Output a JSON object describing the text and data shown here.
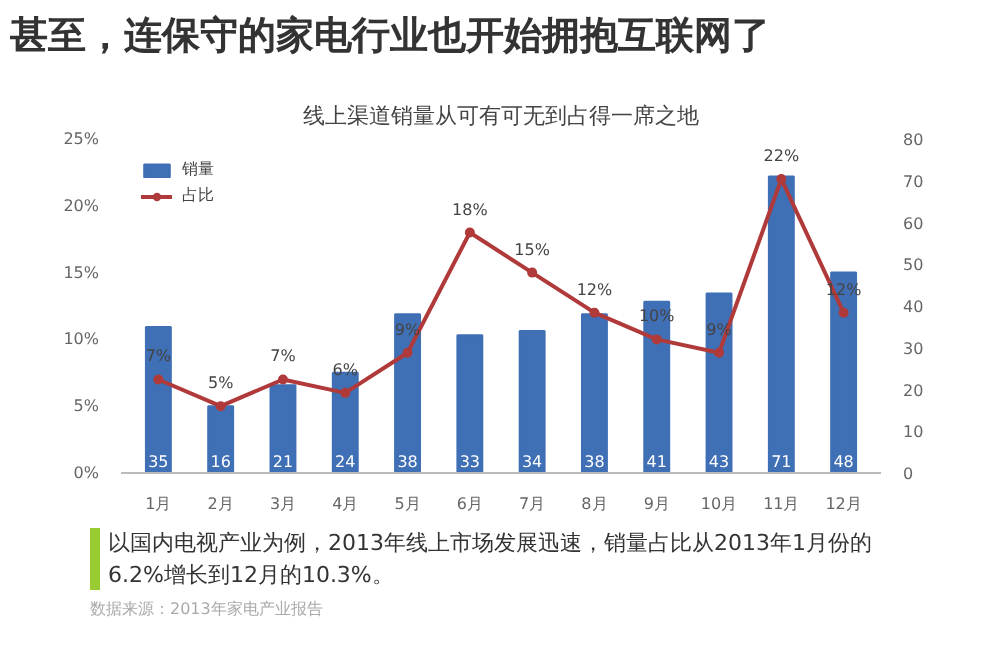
{
  "chart_data": {
    "type": "bar",
    "title": "甚至，连保守的家电行业也开始拥抱互联网了",
    "subtitle": "线上渠道销量从可有可无到占得一席之地",
    "categories": [
      "1月",
      "2月",
      "3月",
      "4月",
      "5月",
      "6月",
      "7月",
      "8月",
      "9月",
      "10月",
      "11月",
      "12月"
    ],
    "series": [
      {
        "name": "销量",
        "axis": "y2",
        "color": "#3f6fb5",
        "values": [
          35,
          16,
          21,
          24,
          38,
          33,
          34,
          38,
          41,
          43,
          71,
          48
        ],
        "value_labels": [
          "35",
          "16",
          "21",
          "24",
          "38",
          "33",
          "34",
          "38",
          "41",
          "43",
          "71",
          "48"
        ]
      },
      {
        "name": "占比",
        "type": "line",
        "axis": "y",
        "color": "#b03a3a",
        "marker": "circle",
        "values": [
          7,
          5,
          7,
          6,
          9,
          18,
          15,
          12,
          10,
          9,
          22,
          12
        ],
        "value_labels": [
          "7%",
          "5%",
          "7%",
          "6%",
          "9%",
          "18%",
          "15%",
          "12%",
          "10%",
          "9%",
          "22%",
          "12%"
        ]
      }
    ],
    "ylim": [
      0,
      25
    ],
    "yticks": [
      {
        "value": 0,
        "label": "0%"
      },
      {
        "value": 5,
        "label": "5%"
      },
      {
        "value": 10,
        "label": "10%"
      },
      {
        "value": 15,
        "label": "15%"
      },
      {
        "value": 20,
        "label": "20%"
      },
      {
        "value": 25,
        "label": "25%"
      }
    ],
    "y2lim": [
      0,
      80
    ],
    "y2ticks": [
      0,
      10,
      20,
      30,
      40,
      50,
      60,
      70,
      80
    ],
    "legend": "top left",
    "grid": false,
    "annotations": [
      "以国内电视产业为例，2013年线上市场发展迅速，销量占比从2013年1月份的6.2%增长到12月的10.3%。",
      "数据来源：2013年家电产业报告"
    ]
  }
}
